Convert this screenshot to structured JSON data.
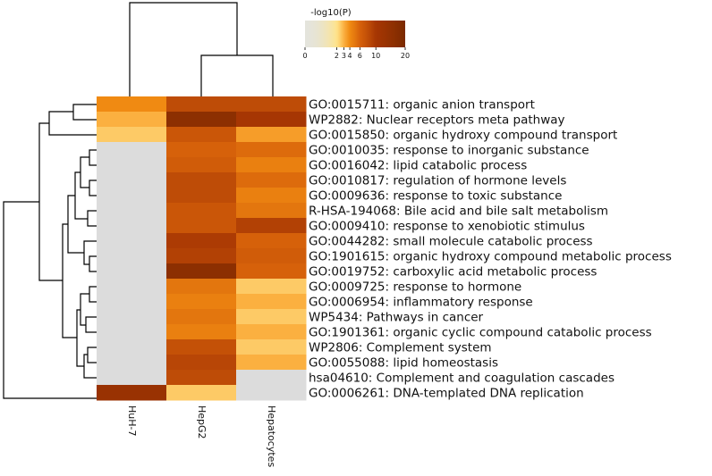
{
  "chart_data": {
    "type": "heatmap",
    "title": "",
    "colorbar": {
      "label": "-log10(P)",
      "tick_labels": [
        "0",
        "2",
        "3",
        "4",
        "6",
        "10",
        "20"
      ],
      "ticks": [
        0,
        2,
        3,
        4,
        6,
        10,
        20
      ],
      "range": [
        0,
        20
      ],
      "colors": [
        "#e4e4dc",
        "#ffe48c",
        "#fbb040",
        "#f08a12",
        "#d6610a",
        "#a63603",
        "#7a2a00"
      ]
    },
    "columns": [
      "HuH-7",
      "HepG2",
      "Hepatocytes"
    ],
    "rows": [
      "GO:0015711: organic anion transport",
      "WP2882: Nuclear receptors meta pathway",
      "GO:0015850: organic hydroxy compound transport",
      "GO:0010035: response to inorganic substance",
      "GO:0016042: lipid catabolic process",
      "GO:0010817: regulation of hormone levels",
      "GO:0009636: response to toxic substance",
      "R-HSA-194068: Bile acid and bile salt metabolism",
      "GO:0009410: response to xenobiotic stimulus",
      "GO:0044282: small molecule catabolic process",
      "GO:1901615: organic hydroxy compound metabolic process",
      "GO:0019752: carboxylic acid metabolic process",
      "GO:0009725: response to hormone",
      "GO:0006954: inflammatory response",
      "WP5434: Pathways in cancer",
      "GO:1901361: organic cyclic compound catabolic process",
      "WP2806: Complement system",
      "GO:0055088: lipid homeostasis",
      "hsa04610: Complement and coagulation cascades",
      "GO:0006261: DNA-templated DNA replication"
    ],
    "values": [
      [
        4,
        8,
        8
      ],
      [
        3,
        16,
        10
      ],
      [
        2.5,
        7,
        3.5
      ],
      [
        0,
        6,
        5.5
      ],
      [
        0,
        6.5,
        4.5
      ],
      [
        0,
        8,
        5.5
      ],
      [
        0,
        8,
        4.5
      ],
      [
        0,
        7,
        5
      ],
      [
        0,
        7,
        9
      ],
      [
        0,
        9.5,
        6
      ],
      [
        0,
        9,
        6.5
      ],
      [
        0,
        16,
        6
      ],
      [
        0,
        5,
        2.5
      ],
      [
        0,
        4.5,
        3
      ],
      [
        0,
        5,
        2.5
      ],
      [
        0,
        4.5,
        3
      ],
      [
        0,
        7.5,
        2.5
      ],
      [
        0,
        8.5,
        3
      ],
      [
        0,
        8,
        0
      ],
      [
        13,
        2.5,
        0
      ]
    ],
    "missing_value_color": "#dcdcdc",
    "xlabel": "",
    "ylabel": ""
  }
}
